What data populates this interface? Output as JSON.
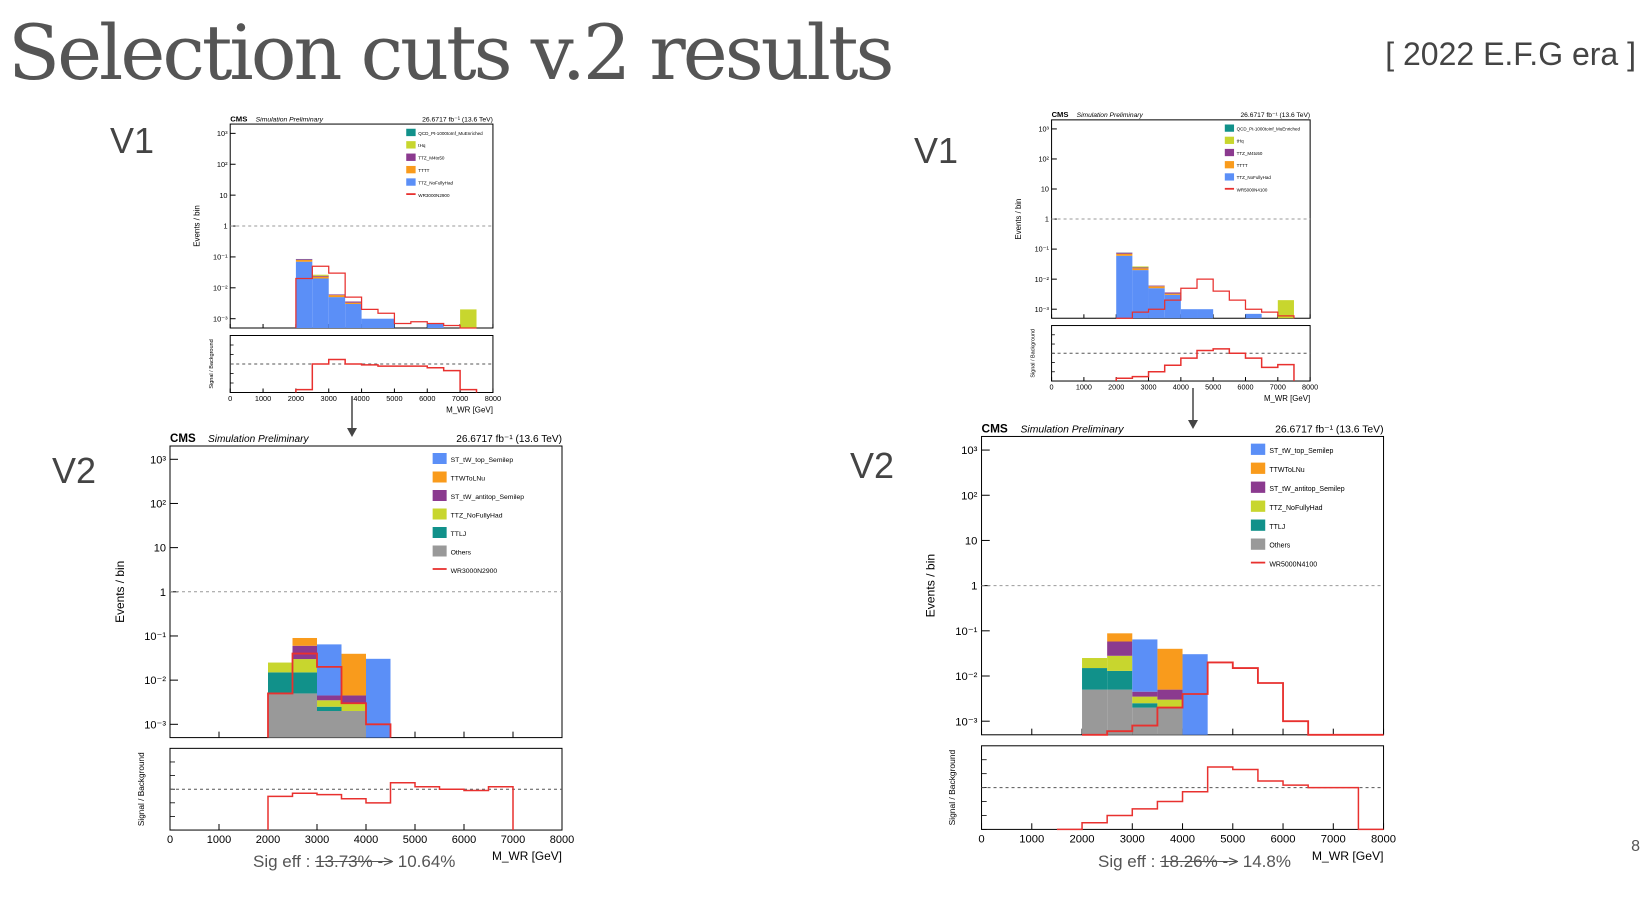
{
  "slide": {
    "title": "Selection cuts  v.2 results",
    "era": "[ 2022 E.F.G era ]",
    "page_number": "8",
    "labels": {
      "v1": "V1",
      "v2": "V2"
    },
    "left": {
      "sig_eff_prefix": "Sig eff : ",
      "sig_eff_old": "13.73% ->",
      "sig_eff_new": " 10.64%"
    },
    "right": {
      "sig_eff_prefix": "Sig eff : ",
      "sig_eff_old": "18.26% ->",
      "sig_eff_new": " 14.8%"
    }
  },
  "colors": {
    "blue": "#5b8ff7",
    "orange": "#f99b1c",
    "purple": "#8b3a8f",
    "lime": "#c8d62e",
    "teal": "#11918a",
    "gray": "#999999",
    "red": "#e8312f"
  },
  "chart_data": [
    {
      "id": "left-v1",
      "type": "bar",
      "stacked": true,
      "log_y": true,
      "header_left": "CMS",
      "header_italic": "Simulation Preliminary",
      "header_right": "26.6717 fb⁻¹ (13.6 TeV)",
      "ylabel": "Events / bin",
      "ratio_ylabel": "Signal / Background",
      "xlabel": "M_WR [GeV]",
      "xlim": [
        0,
        8000
      ],
      "ylim": [
        0.0005,
        2000
      ],
      "x_ticks": [
        "0",
        "1000",
        "2000",
        "3000",
        "4000",
        "5000",
        "6000",
        "7000",
        "8000"
      ],
      "y_ticks": [
        "10⁻³",
        "10⁻²",
        "10⁻¹",
        "1",
        "10",
        "10²",
        "10³"
      ],
      "bin_edges": [
        2000,
        2500,
        3000,
        3500,
        4000,
        4500,
        5000,
        5500,
        6000,
        6500,
        7000,
        7500
      ],
      "series": [
        {
          "name": "TTZ_NoFullyHad",
          "color": "blue",
          "values": [
            0.07,
            0.02,
            0.005,
            0.003,
            0.001,
            0.001,
            0.0005,
            0.0005,
            0.0007,
            0.0005,
            0,
            0
          ]
        },
        {
          "name": "TTTT",
          "color": "orange",
          "values": [
            0.01,
            0.003,
            0.0008,
            0.0003,
            0,
            0,
            0,
            0,
            0,
            0,
            0,
            0
          ]
        },
        {
          "name": "TTZ_M4to50",
          "color": "purple",
          "values": [
            0.005,
            0.0015,
            0.0003,
            0.0003,
            0,
            0,
            0,
            0,
            0,
            0,
            0,
            0
          ]
        },
        {
          "name": "tHq",
          "color": "lime",
          "values": [
            0,
            0.002,
            0,
            0,
            0,
            0,
            0,
            0,
            0,
            0,
            0.002,
            0.0015
          ]
        },
        {
          "name": "QCD_Pt-1000toInf_MuEnriched",
          "color": "teal",
          "values": [
            0.0008,
            0,
            0,
            0,
            0,
            0,
            0,
            0,
            0,
            0,
            0,
            0
          ]
        }
      ],
      "signal": {
        "name": "WR3000N2900",
        "color": "red",
        "values": [
          0.02,
          0.05,
          0.03,
          0.005,
          0.002,
          0.0015,
          0.0007,
          0.0008,
          0.0007,
          0.0006,
          0.0005,
          0.0005
        ]
      },
      "ratio": {
        "ylim": [
          0.001,
          1000
        ],
        "values": [
          0.002,
          1,
          3,
          1,
          0.8,
          0.6,
          0.6,
          0.6,
          0.4,
          0.2,
          0.002,
          1
        ]
      }
    },
    {
      "id": "left-v2",
      "type": "bar",
      "stacked": true,
      "log_y": true,
      "header_left": "CMS",
      "header_italic": "Simulation Preliminary",
      "header_right": "26.6717 fb⁻¹ (13.6 TeV)",
      "ylabel": "Events / bin",
      "ratio_ylabel": "Signal / Background",
      "xlabel": "M_WR [GeV]",
      "xlim": [
        0,
        8000
      ],
      "ylim": [
        0.0005,
        2000
      ],
      "x_ticks": [
        "0",
        "1000",
        "2000",
        "3000",
        "4000",
        "5000",
        "6000",
        "7000",
        "8000"
      ],
      "y_ticks": [
        "10⁻³",
        "10⁻²",
        "10⁻¹",
        "1",
        "10",
        "10²",
        "10³"
      ],
      "bin_edges": [
        2000,
        2500,
        3000,
        3500,
        4000,
        4500
      ],
      "series": [
        {
          "name": "Others",
          "color": "gray",
          "values": [
            0.005,
            0.005,
            0.002,
            0.002,
            0
          ]
        },
        {
          "name": "TTLJ",
          "color": "teal",
          "values": [
            0.01,
            0.01,
            0.0005,
            0,
            0
          ]
        },
        {
          "name": "TTZ_NoFullyHad",
          "color": "lime",
          "values": [
            0.01,
            0.015,
            0.001,
            0.001,
            0.0004
          ]
        },
        {
          "name": "ST_tW_antitop_Semilep",
          "color": "purple",
          "values": [
            0.0,
            0.03,
            0.001,
            0.0015,
            0
          ]
        },
        {
          "name": "TTWToLNu",
          "color": "orange",
          "values": [
            0.0,
            0.03,
            0,
            0.035,
            0
          ]
        },
        {
          "name": "ST_tW_top_Semilep",
          "color": "blue",
          "values": [
            0.0,
            0,
            0.06,
            0,
            0.03
          ]
        }
      ],
      "signal": {
        "name": "WR3000N2900",
        "color": "red",
        "values": [
          0.005,
          0.04,
          0.02,
          0.003,
          0.001
        ]
      },
      "ratio": {
        "ylim": [
          0.001,
          1000
        ],
        "values": [
          0.3,
          0.5,
          0.4,
          0.2,
          0.1,
          3,
          1.5,
          1,
          0.8,
          1.5
        ],
        "bin_edges": [
          2000,
          2500,
          3000,
          3500,
          4000,
          4500,
          5000,
          5500,
          6000,
          6500,
          7000
        ]
      }
    },
    {
      "id": "right-v1",
      "type": "bar",
      "stacked": true,
      "log_y": true,
      "header_left": "CMS",
      "header_italic": "Simulation Preliminary",
      "header_right": "26.6717 fb⁻¹ (13.6 TeV)",
      "ylabel": "Events / bin",
      "ratio_ylabel": "Signal / Background",
      "xlabel": "M_WR [GeV]",
      "xlim": [
        0,
        8000
      ],
      "ylim": [
        0.0005,
        2000
      ],
      "x_ticks": [
        "0",
        "1000",
        "2000",
        "3000",
        "4000",
        "5000",
        "6000",
        "7000",
        "8000"
      ],
      "y_ticks": [
        "10⁻³",
        "10⁻²",
        "10⁻¹",
        "1",
        "10",
        "10²",
        "10³"
      ],
      "bin_edges": [
        2000,
        2500,
        3000,
        3500,
        4000,
        4500,
        5000,
        5500,
        6000,
        6500,
        7000,
        7500
      ],
      "series": [
        {
          "name": "TTZ_NoFullyHad",
          "color": "blue",
          "values": [
            0.06,
            0.02,
            0.005,
            0.003,
            0.001,
            0.001,
            0.0005,
            0.0005,
            0.0007,
            0.0005,
            0,
            0
          ]
        },
        {
          "name": "TTTT",
          "color": "orange",
          "values": [
            0.01,
            0.003,
            0.0008,
            0.0003,
            0,
            0,
            0,
            0,
            0,
            0,
            0,
            0
          ]
        },
        {
          "name": "TTZ_M4to50",
          "color": "purple",
          "values": [
            0.006,
            0.0015,
            0.0003,
            0.0003,
            0,
            0,
            0,
            0,
            0,
            0,
            0,
            0
          ]
        },
        {
          "name": "tHq",
          "color": "lime",
          "values": [
            0,
            0.002,
            0,
            0,
            0,
            0,
            0,
            0,
            0,
            0,
            0.002,
            0.0015
          ]
        },
        {
          "name": "QCD_Pt-1000toInf_MuEnriched",
          "color": "teal",
          "values": [
            0.001,
            0,
            0,
            0,
            0,
            0,
            0,
            0,
            0,
            0,
            0,
            0
          ]
        }
      ],
      "signal": {
        "name": "WR5000N4100",
        "color": "red",
        "values": [
          0.0005,
          0.0008,
          0.001,
          0.002,
          0.005,
          0.01,
          0.004,
          0.002,
          0.001,
          0.0008,
          0.0006,
          0.0005
        ]
      },
      "ratio": {
        "ylim": [
          0.001,
          1000
        ],
        "values": [
          0.002,
          0.003,
          0.01,
          0.05,
          0.3,
          2,
          3,
          1,
          0.3,
          0.03,
          0.06,
          0.2
        ]
      }
    },
    {
      "id": "right-v2",
      "type": "bar",
      "stacked": true,
      "log_y": true,
      "header_left": "CMS",
      "header_italic": "Simulation Preliminary",
      "header_right": "26.6717 fb⁻¹ (13.6 TeV)",
      "ylabel": "Events / bin",
      "ratio_ylabel": "Signal / Background",
      "xlabel": "M_WR [GeV]",
      "xlim": [
        0,
        8000
      ],
      "ylim": [
        0.0005,
        2000
      ],
      "x_ticks": [
        "0",
        "1000",
        "2000",
        "3000",
        "4000",
        "5000",
        "6000",
        "7000",
        "8000"
      ],
      "y_ticks": [
        "10⁻³",
        "10⁻²",
        "10⁻¹",
        "1",
        "10",
        "10²",
        "10³"
      ],
      "bin_edges": [
        2000,
        2500,
        3000,
        3500,
        4000,
        4500
      ],
      "series": [
        {
          "name": "Others",
          "color": "gray",
          "values": [
            0.005,
            0.005,
            0.002,
            0.002,
            0
          ]
        },
        {
          "name": "TTLJ",
          "color": "teal",
          "values": [
            0.01,
            0.008,
            0.0005,
            0,
            0
          ]
        },
        {
          "name": "TTZ_NoFullyHad",
          "color": "lime",
          "values": [
            0.01,
            0.015,
            0.001,
            0.001,
            0.0004
          ]
        },
        {
          "name": "ST_tW_antitop_Semilep",
          "color": "purple",
          "values": [
            0,
            0.03,
            0.001,
            0.002,
            0
          ]
        },
        {
          "name": "TTWToLNu",
          "color": "orange",
          "values": [
            0,
            0.03,
            0,
            0.035,
            0
          ]
        },
        {
          "name": "ST_tW_top_Semilep",
          "color": "blue",
          "values": [
            0,
            0,
            0.06,
            0,
            0.03
          ]
        }
      ],
      "signal": {
        "name": "WR5000N4100",
        "color": "red",
        "values": [
          0.0005,
          0.0006,
          0.0008,
          0.002,
          0.004,
          0.02,
          0.015,
          0.007,
          0.001,
          0.0005,
          0.0005,
          0.0005
        ],
        "bin_edges": [
          2000,
          2500,
          3000,
          3500,
          4000,
          4500,
          5000,
          5500,
          6000,
          6500,
          7000,
          7500,
          8000
        ]
      },
      "ratio": {
        "ylim": [
          0.001,
          1000
        ],
        "values": [
          0.001,
          0.003,
          0.01,
          0.03,
          0.1,
          0.5,
          30,
          20,
          3,
          1.5,
          1,
          1,
          0.001
        ],
        "bin_edges": [
          1500,
          2000,
          2500,
          3000,
          3500,
          4000,
          4500,
          5000,
          5500,
          6000,
          6500,
          7000,
          7500,
          8000
        ]
      }
    }
  ]
}
